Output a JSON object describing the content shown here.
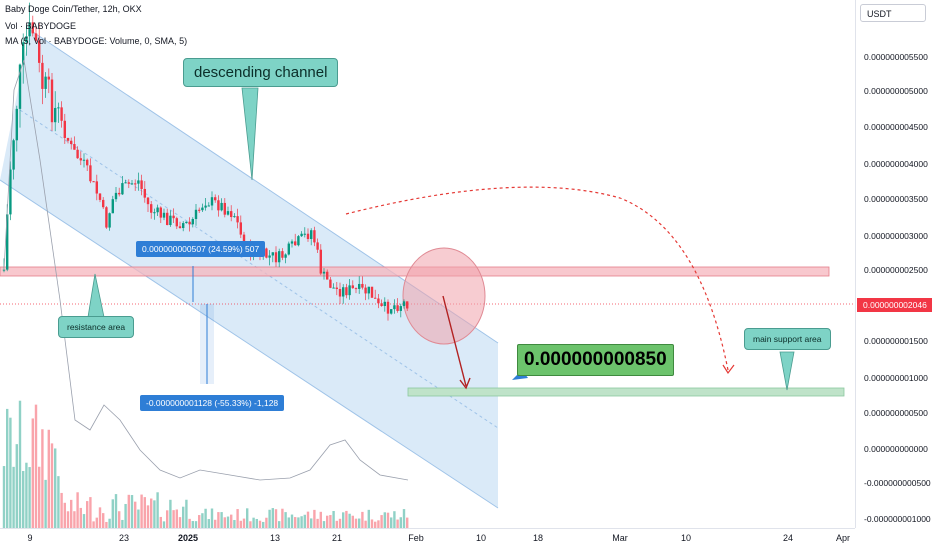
{
  "legend": {
    "title": "Baby Doge Coin/Tether, 12h, OKX",
    "vol": "Vol · BABYDOGE",
    "ma": "MA (5, Vol · BABYDOGE: Volume, 0, SMA, 5)"
  },
  "price_axis": {
    "currency": "USDT",
    "labels": [
      "0.000000005500",
      "0.000000005000",
      "0.000000004500",
      "0.000000004000",
      "0.000000003500",
      "0.000000003000",
      "0.000000002500",
      "0.000000001500",
      "0.000000001000",
      "0.000000000500",
      "0.000000000000",
      "-0.000000000500",
      "-0.000000001000"
    ],
    "current_price": "0.000000002046"
  },
  "time_axis": {
    "labels": [
      "9",
      "23",
      "2025",
      "13",
      "21",
      "Feb",
      "10",
      "18",
      "Mar",
      "10",
      "24",
      "Apr"
    ]
  },
  "annotations": {
    "descending_channel": "descending channel",
    "resistance_area": "resistance area",
    "main_support_area": "main support area",
    "target_price": "0.000000000850",
    "measure_up": "0.000000000507 (24.59%) 507",
    "measure_down": "-0.000000001128 (-55.33%) -1,128"
  },
  "colors": {
    "up": "#089981",
    "down": "#f23645",
    "channel": "#bcd9f2",
    "resistance": "#f5b5bd",
    "support": "#bfe3c9",
    "callout": "#7ed3c6",
    "measure": "#2e7ed6",
    "target": "#6cc36c"
  }
}
